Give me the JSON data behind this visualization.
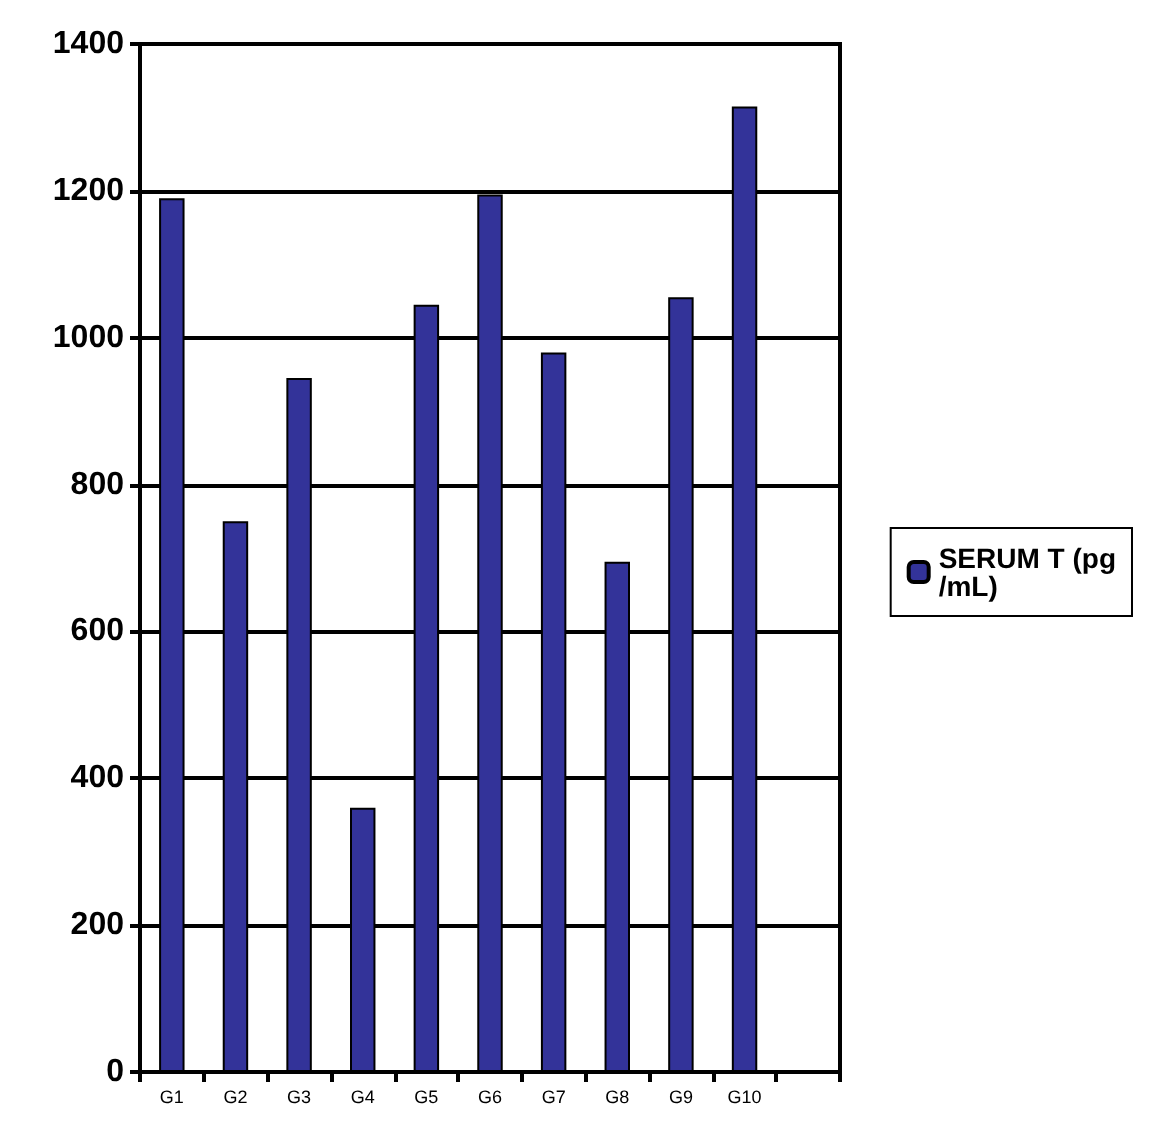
{
  "chart_data": {
    "type": "bar",
    "categories": [
      "G1",
      "G2",
      "G3",
      "G4",
      "G5",
      "G6",
      "G7",
      "G8",
      "G9",
      "G10",
      null
    ],
    "series": [
      {
        "name": "SERUM T (pg/mL)",
        "color": "#333399",
        "values": [
          1190,
          750,
          945,
          360,
          1045,
          1195,
          980,
          695,
          1055,
          1315,
          null
        ]
      }
    ],
    "ylim": [
      0,
      1400
    ],
    "yticks": [
      0,
      200,
      400,
      600,
      800,
      1000,
      1200,
      1400
    ],
    "grid": "y",
    "legend": "right"
  }
}
